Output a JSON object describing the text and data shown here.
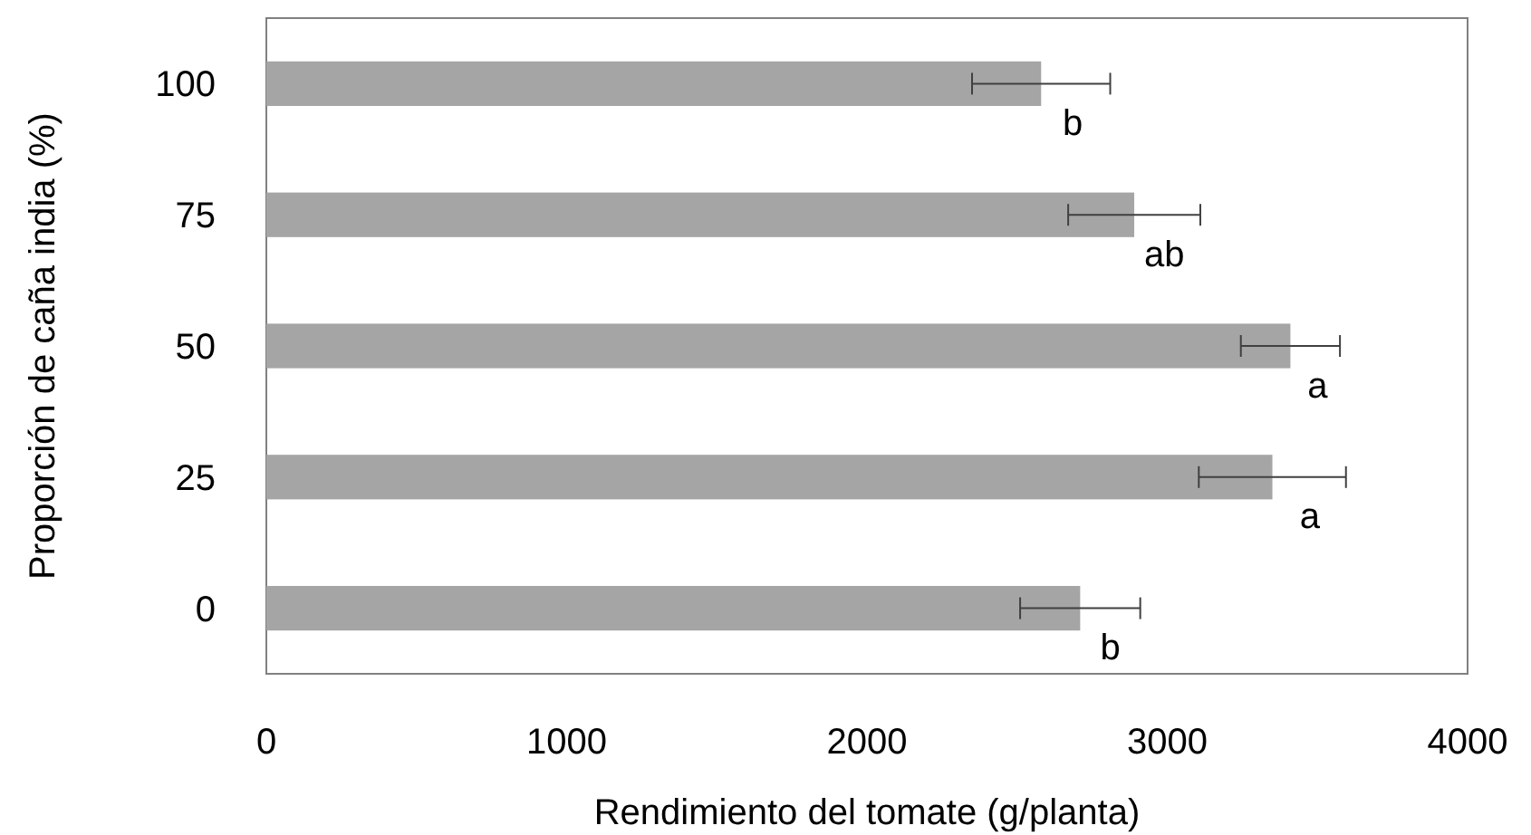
{
  "chart_data": {
    "type": "bar",
    "orientation": "horizontal",
    "xlabel": "Rendimiento del tomate (g/planta)",
    "ylabel": "Proporción de caña india (%)",
    "categories": [
      "100",
      "75",
      "50",
      "25",
      "0"
    ],
    "values": [
      2580,
      2890,
      3410,
      3350,
      2710
    ],
    "errors": [
      230,
      220,
      165,
      245,
      200
    ],
    "color": "#a5a5a5",
    "xlim": [
      0,
      4000
    ],
    "xticks": [
      0,
      1000,
      2000,
      3000,
      4000
    ],
    "grid": false,
    "annotations": [
      {
        "text": "b",
        "x": 2685,
        "y": "100"
      },
      {
        "text": "ab",
        "x": 2990,
        "y": "75"
      },
      {
        "text": "a",
        "x": 3500,
        "y": "50"
      },
      {
        "text": "a",
        "x": 3475,
        "y": "25"
      },
      {
        "text": "b",
        "x": 2810,
        "y": "0"
      }
    ]
  }
}
